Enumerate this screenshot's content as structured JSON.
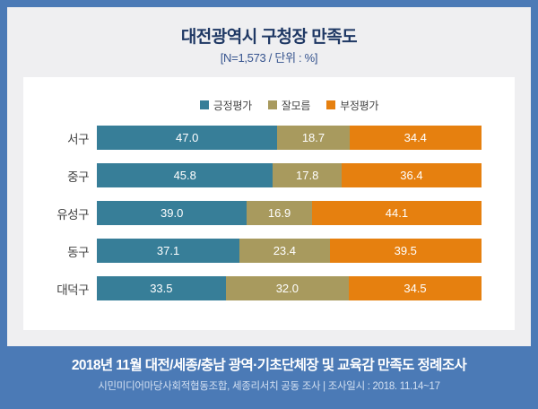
{
  "header": {
    "title": "대전광역시 구청장 만족도",
    "subtitle": "[N=1,573 / 단위 : %]"
  },
  "chart_data": {
    "type": "bar",
    "variant": "horizontal-stacked-100",
    "title": "대전광역시 구청장 만족도",
    "subtitle": "[N=1,573 / 단위 : %]",
    "sample_size": "N=1,573",
    "unit": "%",
    "legend_position": "top",
    "value_labels": "inside-center, one decimal",
    "xlim": [
      0,
      100
    ],
    "categories": [
      "서구",
      "중구",
      "유성구",
      "동구",
      "대덕구"
    ],
    "series": [
      {
        "name": "긍정평가",
        "color": "#377e98",
        "values": [
          47.0,
          45.8,
          39.0,
          37.1,
          33.5
        ]
      },
      {
        "name": "잘모름",
        "color": "#a89a5e",
        "values": [
          18.7,
          17.8,
          16.9,
          23.4,
          32.0
        ]
      },
      {
        "name": "부정평가",
        "color": "#e6800f",
        "values": [
          34.4,
          36.4,
          44.1,
          39.5,
          34.5
        ]
      }
    ]
  },
  "footer": {
    "line1": "2018년 11월 대전/세종/충남 광역·기초단체장 및 교육감 만족도 정례조사",
    "line2": "시민미디어마당사회적협동조합, 세종리서치 공동 조사  |  조사일시 : 2018. 11.14~17"
  },
  "colors": {
    "frame_border": "#4b7ab6",
    "page_background": "#efeff1",
    "card_background": "#ffffff",
    "title_text": "#1f3864",
    "subtitle_text": "#35538e",
    "category_label_text": "#3f3f3f",
    "legend_text": "#444444",
    "value_label_text": "#ffffff",
    "banner_background": "#4b7ab6",
    "banner_text": "#ffffff",
    "banner_subtext": "#d3e0f2"
  }
}
